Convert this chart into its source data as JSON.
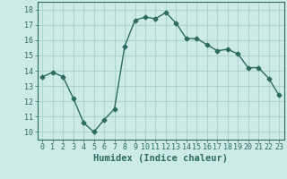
{
  "x": [
    0,
    1,
    2,
    3,
    4,
    5,
    6,
    7,
    8,
    9,
    10,
    11,
    12,
    13,
    14,
    15,
    16,
    17,
    18,
    19,
    20,
    21,
    22,
    23
  ],
  "y": [
    13.6,
    13.9,
    13.6,
    12.2,
    10.6,
    10.0,
    10.8,
    11.5,
    15.6,
    17.3,
    17.5,
    17.4,
    17.8,
    17.1,
    16.1,
    16.1,
    15.7,
    15.3,
    15.4,
    15.1,
    14.2,
    14.2,
    13.5,
    12.4
  ],
  "line_color": "#2d6b61",
  "marker": "D",
  "marker_size": 2.5,
  "bg_color": "#cceae8",
  "grid_color": "#aed4d1",
  "xlabel": "Humidex (Indice chaleur)",
  "ylim": [
    9.5,
    18.5
  ],
  "xlim": [
    -0.5,
    23.5
  ],
  "yticks": [
    10,
    11,
    12,
    13,
    14,
    15,
    16,
    17,
    18
  ],
  "xticks": [
    0,
    1,
    2,
    3,
    4,
    5,
    6,
    7,
    8,
    9,
    10,
    11,
    12,
    13,
    14,
    15,
    16,
    17,
    18,
    19,
    20,
    21,
    22,
    23
  ],
  "tick_fontsize": 6,
  "xlabel_fontsize": 7.5
}
